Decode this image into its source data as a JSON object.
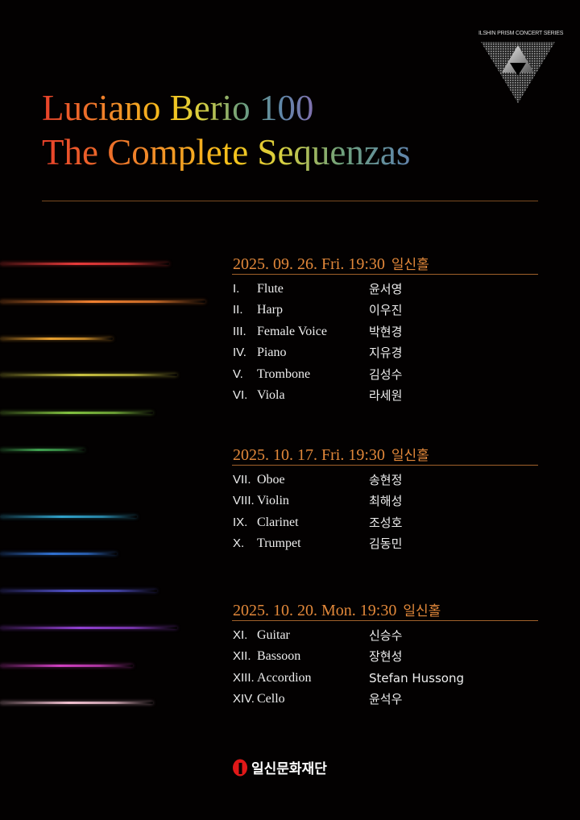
{
  "series_logo": {
    "text": "ILSHIN PRISM CONCERT SERIES"
  },
  "title": {
    "line1": "Luciano Berio 100",
    "line2": "The Complete Sequenzas"
  },
  "colors": {
    "accent": "#e2883a",
    "background": "#030101"
  },
  "streak_colors": [
    "#e83a3a",
    "#f08030",
    "#e8a030",
    "#c8c040",
    "#80c040",
    "#40a050",
    "#30a0c8",
    "#3070d0",
    "#5050c8",
    "#9040d0",
    "#d040c0",
    "#f0c0d0"
  ],
  "concerts": [
    {
      "date": "2025. 09. 26. Fri. 19:30",
      "venue": "일신홀",
      "pieces": [
        {
          "num": "I.",
          "instrument": "Flute",
          "performer": "윤서영"
        },
        {
          "num": "II.",
          "instrument": "Harp",
          "performer": "이우진"
        },
        {
          "num": "III.",
          "instrument": "Female Voice",
          "performer": "박현경"
        },
        {
          "num": "IV.",
          "instrument": "Piano",
          "performer": "지유경"
        },
        {
          "num": "V.",
          "instrument": "Trombone",
          "performer": "김성수"
        },
        {
          "num": "VI.",
          "instrument": "Viola",
          "performer": "라세원"
        }
      ]
    },
    {
      "date": "2025. 10. 17. Fri. 19:30",
      "venue": "일신홀",
      "pieces": [
        {
          "num": "VII.",
          "instrument": "Oboe",
          "performer": "송현정"
        },
        {
          "num": "VIII.",
          "instrument": "Violin",
          "performer": "최해성"
        },
        {
          "num": "IX.",
          "instrument": "Clarinet",
          "performer": "조성호"
        },
        {
          "num": "X.",
          "instrument": "Trumpet",
          "performer": "김동민"
        }
      ]
    },
    {
      "date": "2025. 10. 20. Mon. 19:30",
      "venue": "일신홀",
      "pieces": [
        {
          "num": "XI.",
          "instrument": "Guitar",
          "performer": "신승수"
        },
        {
          "num": "XII.",
          "instrument": "Bassoon",
          "performer": "장현성"
        },
        {
          "num": "XIII.",
          "instrument": "Accordion",
          "performer": "Stefan Hussong"
        },
        {
          "num": "XIV.",
          "instrument": "Cello",
          "performer": "윤석우"
        }
      ]
    }
  ],
  "footer": {
    "organization": "일신문화재단"
  }
}
